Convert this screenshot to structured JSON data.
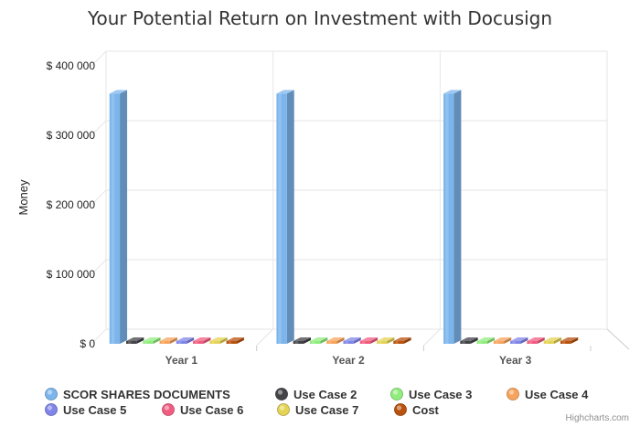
{
  "chart_data": {
    "type": "bar",
    "title": "Your Potential Return on Investment with Docusign",
    "xlabel": "",
    "ylabel": "Money",
    "ylim": [
      0,
      400000
    ],
    "yticks": [
      "$ 0",
      "$ 100 000",
      "$ 200 000",
      "$ 300 000",
      "$ 400 000"
    ],
    "ytick_values": [
      0,
      100000,
      200000,
      300000,
      400000
    ],
    "categories": [
      "Year 1",
      "Year 2",
      "Year 3"
    ],
    "grid": true,
    "legend_position": "bottom",
    "series": [
      {
        "name": "SCOR SHARES DOCUMENTS",
        "color": "#7cb5ec",
        "values": [
          360000,
          360000,
          360000
        ]
      },
      {
        "name": "Use Case 2",
        "color": "#434348",
        "values": [
          0,
          0,
          0
        ]
      },
      {
        "name": "Use Case 3",
        "color": "#90ed7d",
        "values": [
          0,
          0,
          0
        ]
      },
      {
        "name": "Use Case 4",
        "color": "#f7a35c",
        "values": [
          0,
          0,
          0
        ]
      },
      {
        "name": "Use Case 5",
        "color": "#8085e9",
        "values": [
          0,
          0,
          0
        ]
      },
      {
        "name": "Use Case 6",
        "color": "#f15c80",
        "values": [
          0,
          0,
          0
        ]
      },
      {
        "name": "Use Case 7",
        "color": "#e4d354",
        "values": [
          0,
          0,
          0
        ]
      },
      {
        "name": "Cost",
        "color": "#b8520e",
        "values": [
          0,
          0,
          0
        ]
      }
    ]
  },
  "credits": "Highcharts.com"
}
